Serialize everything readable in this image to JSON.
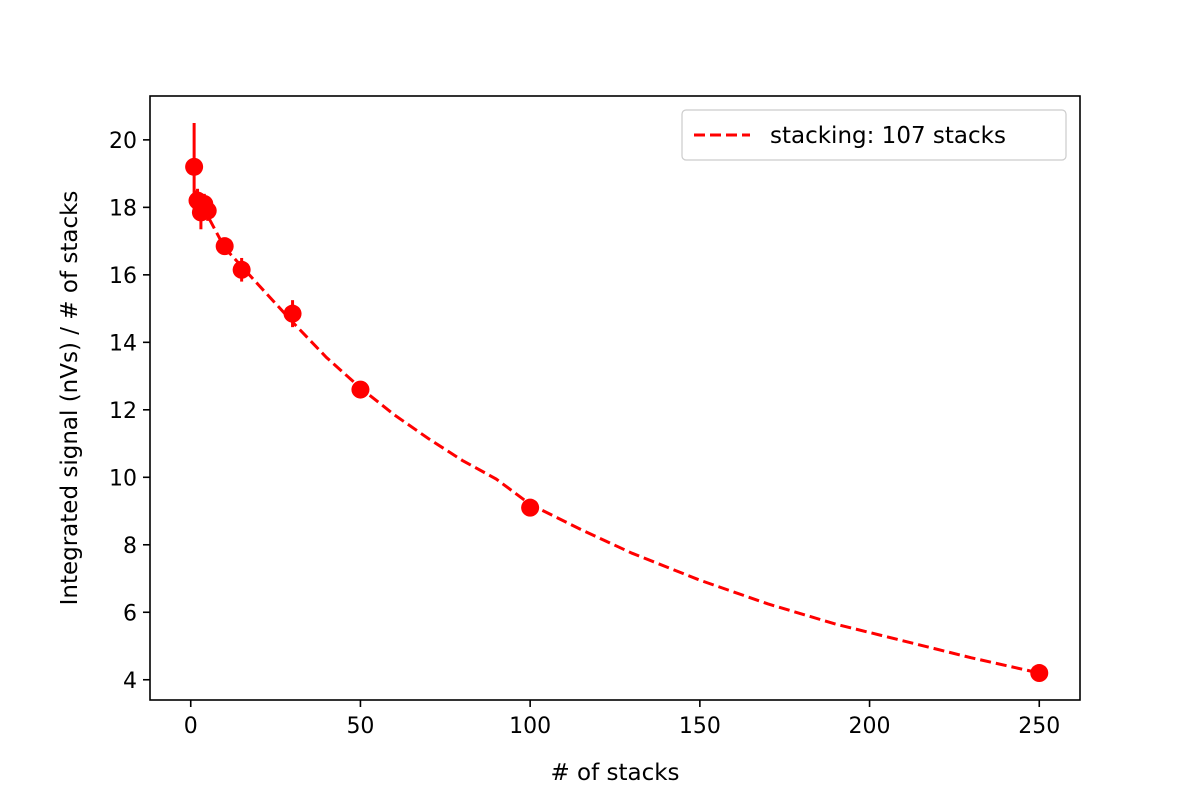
{
  "chart_data": {
    "type": "scatter",
    "title": "",
    "xlabel": "# of stacks",
    "ylabel": "Integrated signal (nVs) / # of stacks",
    "xlim": [
      -12,
      262
    ],
    "ylim": [
      3.4,
      21.3
    ],
    "xticks": [
      0,
      50,
      100,
      150,
      200,
      250
    ],
    "yticks": [
      4,
      6,
      8,
      10,
      12,
      14,
      16,
      18,
      20
    ],
    "grid": false,
    "legend_position": "top-right",
    "color": "#ff0000",
    "points": [
      {
        "x": 1,
        "y": 19.2,
        "err": 1.3
      },
      {
        "x": 2,
        "y": 18.2,
        "err": 0.35
      },
      {
        "x": 3,
        "y": 17.85,
        "err": 0.5
      },
      {
        "x": 4,
        "y": 18.1,
        "err": 0.3
      },
      {
        "x": 5,
        "y": 17.9,
        "err": 0.3
      },
      {
        "x": 10,
        "y": 16.85,
        "err": 0.25
      },
      {
        "x": 15,
        "y": 16.15,
        "err": 0.35
      },
      {
        "x": 30,
        "y": 14.85,
        "err": 0.4
      },
      {
        "x": 50,
        "y": 12.6,
        "err": 0.2
      },
      {
        "x": 100,
        "y": 9.1,
        "err": 0.12
      },
      {
        "x": 250,
        "y": 4.2,
        "err": 0.1
      }
    ],
    "fit": {
      "name": "stacking: 107 stacks",
      "style": "dashed",
      "x": [
        1,
        10,
        20,
        30,
        40,
        50,
        60,
        70,
        80,
        90,
        100,
        115,
        130,
        150,
        170,
        190,
        210,
        230,
        250
      ],
      "y": [
        18.5,
        16.8,
        15.7,
        14.6,
        13.55,
        12.65,
        11.85,
        11.15,
        10.5,
        9.95,
        9.2,
        8.45,
        7.75,
        6.95,
        6.25,
        5.65,
        5.15,
        4.65,
        4.2
      ]
    }
  }
}
